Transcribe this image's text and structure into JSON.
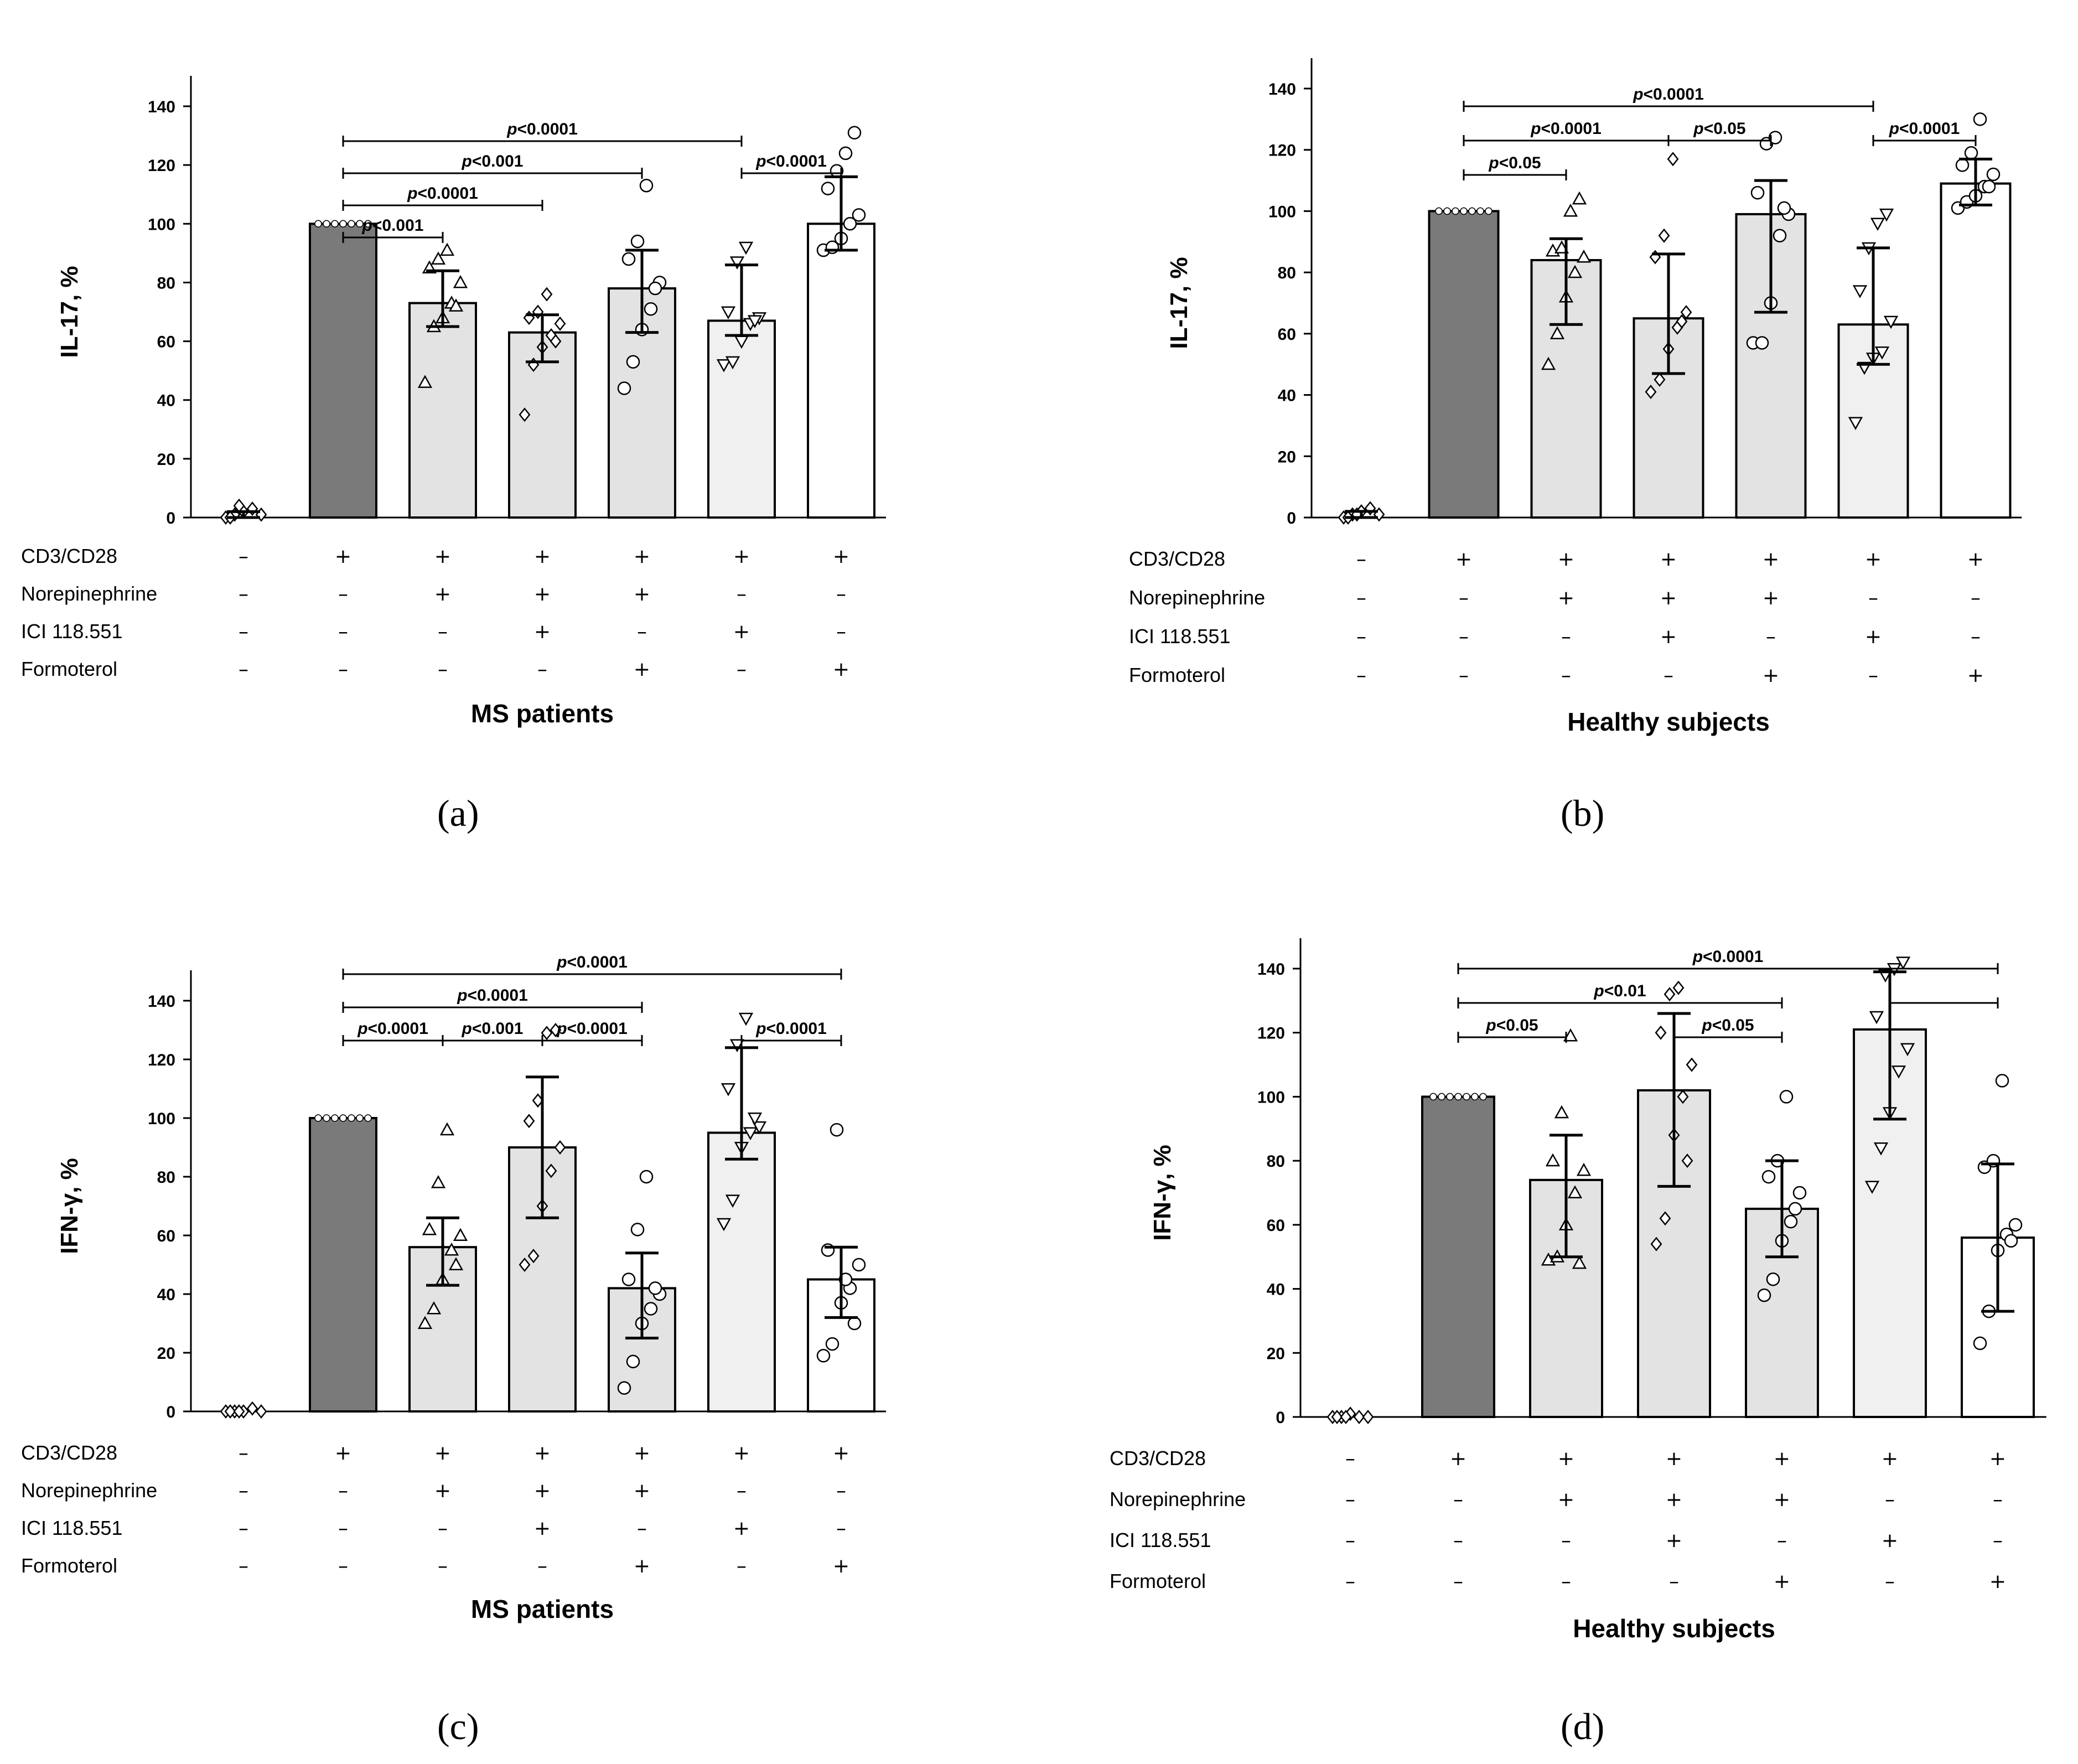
{
  "panel_labels": [
    "(a)",
    "(b)",
    "(c)",
    "(d)"
  ],
  "colors": {
    "dark_bar": "#7a7a7a",
    "light_bar": "#e3e3e3",
    "lighter_bar": "#f0f0f0",
    "white_bar": "#ffffff",
    "stroke": "#000000"
  },
  "chart_data": [
    {
      "type": "bar",
      "panel": "a",
      "ylabel": "IL-17, %",
      "xlabel": "MS patients",
      "ylim": [
        0,
        140
      ],
      "yticks": [
        "0",
        "20",
        "40",
        "60",
        "80",
        "100",
        "120",
        "140"
      ],
      "condition_labels": [
        "CD3/CD28",
        "Norepinephrine",
        "ICI 118.551",
        "Formoterol"
      ],
      "conditions": [
        [
          "–",
          "+",
          "+",
          "+",
          "+",
          "+",
          "+"
        ],
        [
          "–",
          "–",
          "+",
          "+",
          "+",
          "–",
          "–"
        ],
        [
          "–",
          "–",
          "–",
          "+",
          "–",
          "+",
          "–"
        ],
        [
          "–",
          "–",
          "–",
          "–",
          "+",
          "–",
          "+"
        ]
      ],
      "values": [
        1,
        100,
        73,
        63,
        78,
        67,
        100
      ],
      "err_low": [
        0,
        100,
        65,
        53,
        63,
        62,
        91
      ],
      "err_high": [
        2,
        100,
        84,
        69,
        91,
        86,
        116
      ],
      "markers": [
        "diamond",
        "none",
        "triangle",
        "diamond",
        "circle",
        "triangle-down",
        "circle"
      ],
      "points": [
        [
          0,
          1,
          2,
          3,
          1,
          0,
          4
        ],
        [
          100,
          100,
          100,
          100,
          100,
          100,
          100
        ],
        [
          46,
          65,
          68,
          73,
          80,
          85,
          88,
          91,
          72
        ],
        [
          35,
          52,
          58,
          62,
          66,
          68,
          70,
          76,
          60
        ],
        [
          44,
          53,
          64,
          71,
          80,
          88,
          94,
          113,
          78
        ],
        [
          52,
          53,
          60,
          66,
          68,
          70,
          87,
          92,
          67
        ],
        [
          91,
          92,
          95,
          100,
          103,
          112,
          118,
          124,
          131
        ]
      ],
      "brackets": [
        {
          "from": 1,
          "to": 2,
          "text": "p<0.001",
          "level": 0
        },
        {
          "from": 1,
          "to": 3,
          "text": "p<0.0001",
          "level": 1
        },
        {
          "from": 1,
          "to": 4,
          "text": "p<0.001",
          "level": 2
        },
        {
          "from": 1,
          "to": 5,
          "text": "p<0.0001",
          "level": 3
        },
        {
          "from": 5,
          "to": 6,
          "text": "p<0.0001",
          "level": 2
        }
      ]
    },
    {
      "type": "bar",
      "panel": "b",
      "ylabel": "IL-17, %",
      "xlabel": "Healthy subjects",
      "ylim": [
        0,
        140
      ],
      "yticks": [
        "0",
        "20",
        "40",
        "60",
        "80",
        "100",
        "120",
        "140"
      ],
      "condition_labels": [
        "CD3/CD28",
        "Norepinephrine",
        "ICI 118.551",
        "Formoterol"
      ],
      "conditions": [
        [
          "–",
          "+",
          "+",
          "+",
          "+",
          "+",
          "+"
        ],
        [
          "–",
          "–",
          "+",
          "+",
          "+",
          "–",
          "–"
        ],
        [
          "–",
          "–",
          "–",
          "+",
          "–",
          "+",
          "–"
        ],
        [
          "–",
          "–",
          "–",
          "–",
          "+",
          "–",
          "+"
        ]
      ],
      "values": [
        1,
        100,
        84,
        65,
        99,
        63,
        109
      ],
      "err_low": [
        0,
        100,
        63,
        47,
        67,
        50,
        102
      ],
      "err_high": [
        2,
        100,
        91,
        86,
        110,
        88,
        117
      ],
      "markers": [
        "diamond",
        "none",
        "triangle",
        "diamond",
        "circle",
        "triangle-down",
        "circle"
      ],
      "points": [
        [
          0,
          1,
          2,
          3,
          1,
          0,
          1
        ],
        [
          100,
          100,
          100,
          100,
          100,
          100,
          100
        ],
        [
          50,
          60,
          72,
          80,
          85,
          87,
          88,
          100,
          104
        ],
        [
          41,
          45,
          55,
          62,
          67,
          85,
          92,
          117,
          64
        ],
        [
          57,
          57,
          70,
          92,
          99,
          106,
          122,
          124,
          101
        ],
        [
          31,
          49,
          52,
          54,
          64,
          74,
          88,
          96,
          99
        ],
        [
          101,
          103,
          105,
          108,
          112,
          115,
          119,
          130,
          108
        ]
      ],
      "brackets": [
        {
          "from": 1,
          "to": 2,
          "text": "p<0.05",
          "level": 0
        },
        {
          "from": 1,
          "to": 3,
          "text": "p<0.0001",
          "level": 1
        },
        {
          "from": 3,
          "to": 4,
          "text": "p<0.05",
          "level": 1
        },
        {
          "from": 1,
          "to": 5,
          "text": "p<0.0001",
          "level": 2
        },
        {
          "from": 5,
          "to": 6,
          "text": "p<0.0001",
          "level": 1
        }
      ]
    },
    {
      "type": "bar",
      "panel": "c",
      "ylabel": "IFN-γ, %",
      "xlabel": "MS patients",
      "ylim": [
        0,
        140
      ],
      "yticks": [
        "0",
        "20",
        "40",
        "60",
        "80",
        "100",
        "120",
        "140"
      ],
      "condition_labels": [
        "CD3/CD28",
        "Norepinephrine",
        "ICI 118.551",
        "Formoterol"
      ],
      "conditions": [
        [
          "–",
          "+",
          "+",
          "+",
          "+",
          "+",
          "+"
        ],
        [
          "–",
          "–",
          "+",
          "+",
          "+",
          "–",
          "–"
        ],
        [
          "–",
          "–",
          "–",
          "+",
          "–",
          "+",
          "–"
        ],
        [
          "–",
          "–",
          "–",
          "–",
          "+",
          "–",
          "+"
        ]
      ],
      "values": [
        0,
        100,
        56,
        90,
        42,
        95,
        45
      ],
      "err_low": [
        0,
        100,
        43,
        66,
        25,
        86,
        32
      ],
      "err_high": [
        0,
        100,
        66,
        114,
        54,
        124,
        56
      ],
      "markers": [
        "diamond",
        "none",
        "triangle",
        "diamond",
        "circle",
        "triangle-down",
        "circle"
      ],
      "points": [
        [
          0,
          0,
          0,
          1,
          0,
          0,
          0
        ],
        [
          100,
          100,
          100,
          100,
          100,
          100,
          100
        ],
        [
          30,
          35,
          45,
          55,
          60,
          62,
          78,
          96,
          50
        ],
        [
          50,
          53,
          70,
          82,
          90,
          99,
          106,
          129,
          130
        ],
        [
          8,
          17,
          30,
          35,
          40,
          45,
          62,
          80,
          42
        ],
        [
          64,
          72,
          90,
          95,
          97,
          110,
          125,
          134,
          100
        ],
        [
          19,
          23,
          37,
          42,
          50,
          55,
          96,
          45,
          30
        ]
      ],
      "brackets": [
        {
          "from": 1,
          "to": 2,
          "text": "p<0.0001",
          "level": 0
        },
        {
          "from": 2,
          "to": 3,
          "text": "p<0.001",
          "level": 0
        },
        {
          "from": 3,
          "to": 4,
          "text": "p<0.0001",
          "level": 0
        },
        {
          "from": 1,
          "to": 4,
          "text": "p<0.0001",
          "level": 1
        },
        {
          "from": 1,
          "to": 6,
          "text": "p<0.0001",
          "level": 2
        },
        {
          "from": 5,
          "to": 6,
          "text": "p<0.0001",
          "level": 0
        }
      ]
    },
    {
      "type": "bar",
      "panel": "d",
      "ylabel": "IFN-γ, %",
      "xlabel": "Healthy subjects",
      "ylim": [
        0,
        140
      ],
      "yticks": [
        "0",
        "20",
        "40",
        "60",
        "80",
        "100",
        "120",
        "140"
      ],
      "condition_labels": [
        "CD3/CD28",
        "Norepinephrine",
        "ICI 118.551",
        "Formoterol"
      ],
      "conditions": [
        [
          "–",
          "+",
          "+",
          "+",
          "+",
          "+",
          "+"
        ],
        [
          "–",
          "–",
          "+",
          "+",
          "+",
          "–",
          "–"
        ],
        [
          "–",
          "–",
          "–",
          "+",
          "–",
          "+",
          "–"
        ],
        [
          "–",
          "–",
          "–",
          "–",
          "+",
          "–",
          "+"
        ]
      ],
      "values": [
        0,
        100,
        74,
        102,
        65,
        121,
        56
      ],
      "err_low": [
        0,
        100,
        50,
        72,
        50,
        93,
        33
      ],
      "err_high": [
        0,
        100,
        88,
        126,
        80,
        139,
        79
      ],
      "markers": [
        "diamond",
        "none",
        "triangle",
        "diamond",
        "circle",
        "triangle-down",
        "circle"
      ],
      "points": [
        [
          0,
          0,
          1,
          0,
          0,
          0,
          0
        ],
        [
          100,
          100,
          100,
          100,
          100,
          100,
          100
        ],
        [
          49,
          50,
          60,
          70,
          77,
          80,
          95,
          119,
          48
        ],
        [
          54,
          62,
          88,
          100,
          110,
          120,
          132,
          134,
          80
        ],
        [
          38,
          43,
          55,
          61,
          70,
          75,
          80,
          100,
          65
        ],
        [
          72,
          84,
          95,
          108,
          115,
          125,
          138,
          140,
          142
        ],
        [
          23,
          33,
          52,
          57,
          60,
          78,
          80,
          105,
          55
        ]
      ],
      "brackets": [
        {
          "from": 1,
          "to": 2,
          "text": "p<0.05",
          "level": 0
        },
        {
          "from": 3,
          "to": 4,
          "text": "p<0.05",
          "level": 0
        },
        {
          "from": 1,
          "to": 4,
          "text": "p<0.01",
          "level": 1
        },
        {
          "from": 1,
          "to": 6,
          "text": "p<0.0001",
          "level": 2
        },
        {
          "from": 5,
          "to": 6,
          "text": "",
          "level": 1
        }
      ]
    }
  ]
}
